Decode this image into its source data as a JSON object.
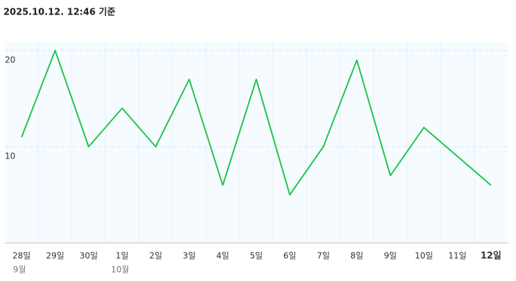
{
  "header": {
    "title": "2025.10.12. 12:46 기준"
  },
  "chart_data": {
    "type": "line",
    "categories": [
      "28일",
      "29일",
      "30일",
      "1일",
      "2일",
      "3일",
      "4일",
      "5일",
      "6일",
      "7일",
      "8일",
      "9일",
      "10일",
      "11일",
      "12일"
    ],
    "sublabels": [
      "9월",
      null,
      null,
      "10월",
      null,
      null,
      null,
      null,
      null,
      null,
      null,
      null,
      null,
      null,
      null
    ],
    "series": [
      {
        "name": null,
        "color": "#1dc44a",
        "values": [
          11,
          20,
          10,
          14,
          10,
          17,
          6,
          17,
          5,
          10,
          19,
          7,
          12,
          9,
          6
        ]
      }
    ],
    "ylim": [
      0,
      20
    ],
    "yticks": [
      10,
      20
    ],
    "grid": true
  }
}
